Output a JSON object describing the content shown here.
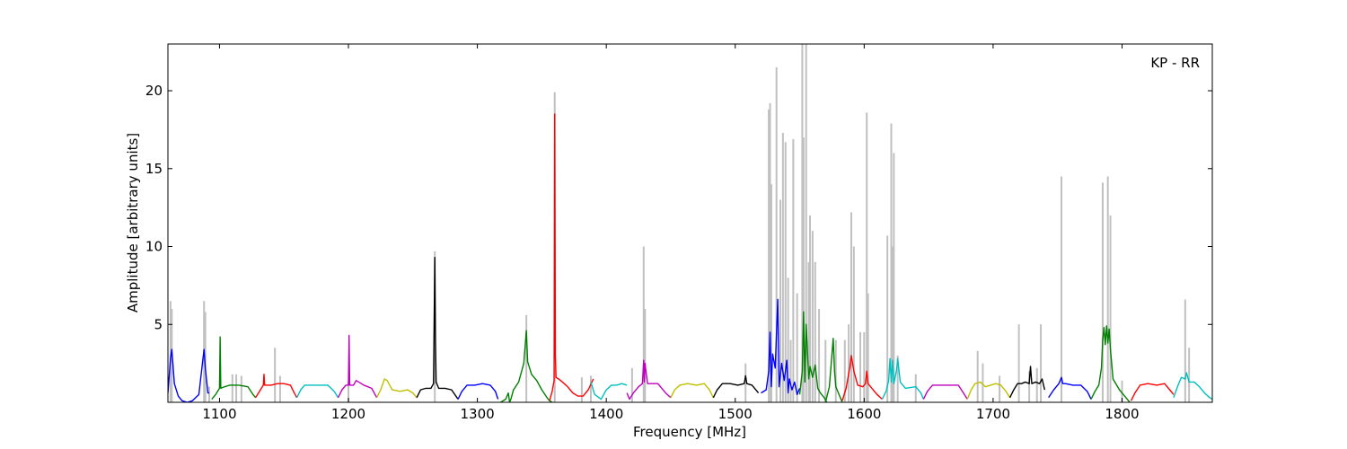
{
  "chart_data": {
    "type": "line",
    "title": "",
    "annotation": "KP - RR",
    "xlabel": "Frequency [MHz]",
    "ylabel": "Amplitude [arbitrary units]",
    "xlim": [
      1060,
      1870
    ],
    "ylim": [
      0,
      23
    ],
    "xticks": [
      1100,
      1200,
      1300,
      1400,
      1500,
      1600,
      1700,
      1800
    ],
    "yticks": [
      5,
      10,
      15,
      20
    ],
    "grid": false,
    "legend": "none",
    "series_colors": [
      "#0000ff",
      "#008000",
      "#ff0000",
      "#00bfbf",
      "#bf00bf",
      "#bfbf00",
      "#000000"
    ],
    "background_color": "#c0c0c0",
    "background_peaks": [
      [
        1062,
        6.5
      ],
      [
        1063,
        6.0
      ],
      [
        1088,
        6.5
      ],
      [
        1089,
        5.8
      ],
      [
        1092,
        1.0
      ],
      [
        1110,
        1.8
      ],
      [
        1113,
        1.8
      ],
      [
        1117,
        1.7
      ],
      [
        1143,
        3.5
      ],
      [
        1147,
        1.7
      ],
      [
        1200,
        1.3
      ],
      [
        1267,
        9.7
      ],
      [
        1338,
        5.6
      ],
      [
        1360,
        19.9
      ],
      [
        1381,
        1.6
      ],
      [
        1388,
        1.7
      ],
      [
        1420,
        2.2
      ],
      [
        1429,
        10.0
      ],
      [
        1430,
        6.0
      ],
      [
        1508,
        2.5
      ],
      [
        1526,
        18.8
      ],
      [
        1527,
        19.2
      ],
      [
        1528,
        14.0
      ],
      [
        1532,
        21.5
      ],
      [
        1535,
        13.0
      ],
      [
        1537,
        17.3
      ],
      [
        1539,
        16.7
      ],
      [
        1541,
        8.0
      ],
      [
        1543,
        4.0
      ],
      [
        1545,
        16.9
      ],
      [
        1548,
        7.0
      ],
      [
        1552,
        23.0
      ],
      [
        1553,
        17.0
      ],
      [
        1555,
        23.0
      ],
      [
        1557,
        9.0
      ],
      [
        1558,
        12.0
      ],
      [
        1560,
        11.0
      ],
      [
        1562,
        9.0
      ],
      [
        1565,
        6.0
      ],
      [
        1570,
        4.0
      ],
      [
        1578,
        4.0
      ],
      [
        1585,
        4.0
      ],
      [
        1588,
        5.0
      ],
      [
        1590,
        12.2
      ],
      [
        1592,
        10.0
      ],
      [
        1597,
        4.5
      ],
      [
        1600,
        4.5
      ],
      [
        1602,
        18.6
      ],
      [
        1603,
        7.0
      ],
      [
        1618,
        10.7
      ],
      [
        1621,
        17.9
      ],
      [
        1622,
        10.0
      ],
      [
        1623,
        16.0
      ],
      [
        1626,
        3.0
      ],
      [
        1640,
        1.8
      ],
      [
        1688,
        3.3
      ],
      [
        1692,
        2.5
      ],
      [
        1705,
        1.7
      ],
      [
        1720,
        5.0
      ],
      [
        1728,
        2.0
      ],
      [
        1734,
        2.2
      ],
      [
        1737,
        5.0
      ],
      [
        1753,
        14.5
      ],
      [
        1785,
        14.1
      ],
      [
        1789,
        14.5
      ],
      [
        1791,
        12.0
      ],
      [
        1800,
        1.4
      ],
      [
        1849,
        6.6
      ],
      [
        1852,
        3.5
      ]
    ],
    "series": [
      {
        "color": "#0000ff",
        "x": [
          1060,
          1062,
          1063,
          1065,
          1068,
          1071,
          1075,
          1079,
          1084,
          1088,
          1089,
          1091,
          1092
        ],
        "y": [
          0.6,
          2.8,
          3.4,
          1.2,
          0.4,
          0.1,
          0.0,
          0.1,
          0.5,
          3.4,
          2.2,
          0.6,
          0.6
        ]
      },
      {
        "color": "#008000",
        "x": [
          1094,
          1097,
          1100,
          1100.5,
          1101,
          1104,
          1108,
          1115,
          1122,
          1126,
          1128
        ],
        "y": [
          0.2,
          0.5,
          0.9,
          4.2,
          0.9,
          1.0,
          1.1,
          1.1,
          1.0,
          0.5,
          0.3
        ]
      },
      {
        "color": "#ff0000",
        "x": [
          1128,
          1131,
          1134,
          1134.5,
          1135,
          1140,
          1145,
          1150,
          1155,
          1158,
          1160
        ],
        "y": [
          0.3,
          0.7,
          1.1,
          1.8,
          1.1,
          1.1,
          1.2,
          1.2,
          1.1,
          0.6,
          0.3
        ]
      },
      {
        "color": "#00bfbf",
        "x": [
          1160,
          1163,
          1166,
          1172,
          1178,
          1184,
          1189,
          1192
        ],
        "y": [
          0.3,
          0.8,
          1.1,
          1.1,
          1.1,
          1.1,
          0.7,
          0.3
        ]
      },
      {
        "color": "#bf00bf",
        "x": [
          1192,
          1195,
          1198,
          1200,
          1200.5,
          1201,
          1204,
          1206,
          1212,
          1218,
          1222
        ],
        "y": [
          0.3,
          0.8,
          1.1,
          1.1,
          4.3,
          1.1,
          1.1,
          1.4,
          1.1,
          0.9,
          0.3
        ]
      },
      {
        "color": "#bfbf00",
        "x": [
          1222,
          1225,
          1228,
          1230,
          1234,
          1240,
          1246,
          1250,
          1253
        ],
        "y": [
          0.3,
          0.8,
          1.5,
          1.4,
          0.8,
          0.7,
          0.8,
          0.6,
          0.3
        ]
      },
      {
        "color": "#000000",
        "x": [
          1253,
          1256,
          1260,
          1264,
          1266,
          1267,
          1267.5,
          1268,
          1270,
          1275,
          1280,
          1285
        ],
        "y": [
          0.3,
          0.8,
          0.9,
          0.9,
          1.2,
          9.3,
          4.0,
          1.3,
          0.9,
          0.9,
          0.8,
          0.2
        ]
      },
      {
        "color": "#0000ff",
        "x": [
          1285,
          1288,
          1292,
          1298,
          1304,
          1310,
          1314,
          1316
        ],
        "y": [
          0.2,
          0.7,
          1.1,
          1.1,
          1.2,
          1.1,
          0.7,
          0.2
        ]
      },
      {
        "color": "#008000",
        "x": [
          1318,
          1322,
          1324,
          1325,
          1326,
          1328,
          1332,
          1336,
          1338,
          1339,
          1342,
          1346,
          1350,
          1354,
          1356,
          1358
        ],
        "y": [
          0.0,
          0.2,
          0.6,
          0.0,
          0.2,
          0.8,
          1.3,
          2.5,
          4.6,
          2.6,
          1.8,
          1.4,
          0.8,
          0.3,
          0.1,
          0.0
        ]
      },
      {
        "color": "#ff0000",
        "x": [
          1356,
          1358,
          1359.5,
          1360,
          1360.5,
          1361,
          1363,
          1366,
          1370,
          1374,
          1378,
          1382,
          1386,
          1390
        ],
        "y": [
          0.1,
          0.7,
          1.4,
          18.5,
          3.0,
          1.6,
          1.5,
          1.3,
          1.0,
          0.6,
          0.4,
          0.4,
          0.8,
          1.5
        ]
      },
      {
        "color": "#00bfbf",
        "x": [
          1388,
          1391,
          1396,
          1400,
          1404,
          1408,
          1412,
          1416
        ],
        "y": [
          1.3,
          0.5,
          0.2,
          0.8,
          1.1,
          1.1,
          1.2,
          1.1
        ]
      },
      {
        "color": "#bf00bf",
        "x": [
          1416,
          1418,
          1421,
          1425,
          1428,
          1429,
          1429.5,
          1430,
          1432,
          1436,
          1440,
          1446,
          1450
        ],
        "y": [
          0.6,
          0.2,
          0.6,
          1.0,
          1.2,
          2.7,
          1.3,
          2.5,
          1.2,
          1.2,
          1.2,
          0.6,
          0.3
        ]
      },
      {
        "color": "#bfbf00",
        "x": [
          1450,
          1453,
          1457,
          1463,
          1470,
          1476,
          1480,
          1483
        ],
        "y": [
          0.3,
          0.8,
          1.1,
          1.2,
          1.1,
          1.2,
          0.8,
          0.3
        ]
      },
      {
        "color": "#000000",
        "x": [
          1483,
          1486,
          1490,
          1496,
          1502,
          1507,
          1508,
          1509,
          1513,
          1518
        ],
        "y": [
          0.3,
          0.8,
          1.2,
          1.2,
          1.1,
          1.2,
          1.7,
          1.2,
          1.1,
          0.6
        ]
      },
      {
        "color": "#0000ff",
        "x": [
          1520,
          1524,
          1526,
          1527,
          1528,
          1529,
          1531,
          1533,
          1534,
          1536,
          1538,
          1540,
          1541,
          1542,
          1544,
          1546,
          1548,
          1550
        ],
        "y": [
          0.6,
          0.8,
          2.0,
          4.5,
          1.0,
          3.1,
          2.2,
          6.6,
          1.0,
          2.5,
          1.4,
          2.7,
          0.6,
          1.5,
          0.8,
          1.3,
          0.5,
          0.9
        ]
      },
      {
        "color": "#008000",
        "x": [
          1550,
          1552,
          1553,
          1554,
          1555,
          1557,
          1558,
          1560,
          1562,
          1564,
          1566,
          1569,
          1571
        ],
        "y": [
          0.5,
          2.0,
          5.8,
          1.3,
          5.0,
          1.5,
          2.3,
          1.6,
          2.4,
          0.9,
          0.6,
          0.3,
          0.0
        ]
      },
      {
        "color": "#008000",
        "x": [
          1570,
          1573,
          1576,
          1577,
          1578,
          1580,
          1583
        ],
        "y": [
          0.0,
          1.0,
          4.1,
          2.0,
          1.0,
          0.6,
          0.0
        ]
      },
      {
        "color": "#ff0000",
        "x": [
          1583,
          1586,
          1589,
          1590,
          1592,
          1595,
          1599,
          1601,
          1602,
          1603,
          1606,
          1610,
          1614
        ],
        "y": [
          0.1,
          0.9,
          2.3,
          3.0,
          2.0,
          1.1,
          1.0,
          1.2,
          2.0,
          1.2,
          0.9,
          0.5,
          0.2
        ]
      },
      {
        "color": "#00bfbf",
        "x": [
          1614,
          1617,
          1619,
          1620,
          1621,
          1622,
          1623,
          1625,
          1626,
          1628,
          1632,
          1640,
          1644,
          1646
        ],
        "y": [
          0.2,
          0.7,
          1.4,
          2.8,
          1.3,
          2.7,
          1.2,
          2.0,
          2.8,
          1.3,
          0.9,
          1.0,
          0.6,
          0.2
        ]
      },
      {
        "color": "#bf00bf",
        "x": [
          1646,
          1649,
          1653,
          1660,
          1667,
          1673,
          1677,
          1680
        ],
        "y": [
          0.2,
          0.7,
          1.1,
          1.1,
          1.1,
          1.1,
          0.6,
          0.2
        ]
      },
      {
        "color": "#bfbf00",
        "x": [
          1680,
          1683,
          1686,
          1690,
          1694,
          1698,
          1702,
          1706,
          1710,
          1713
        ],
        "y": [
          0.2,
          0.8,
          1.2,
          1.3,
          1.0,
          1.1,
          1.2,
          1.1,
          0.7,
          0.3
        ]
      },
      {
        "color": "#000000",
        "x": [
          1713,
          1716,
          1719,
          1722,
          1725,
          1728,
          1729,
          1730,
          1733,
          1736,
          1738,
          1740
        ],
        "y": [
          0.3,
          0.8,
          1.2,
          1.2,
          1.3,
          1.2,
          2.3,
          1.2,
          1.3,
          1.2,
          1.5,
          0.8
        ]
      },
      {
        "color": "#0000ff",
        "x": [
          1743,
          1747,
          1751,
          1753,
          1754,
          1756,
          1762,
          1768,
          1773,
          1776
        ],
        "y": [
          0.3,
          0.8,
          1.2,
          1.6,
          1.2,
          1.2,
          1.1,
          1.1,
          0.7,
          0.2
        ]
      },
      {
        "color": "#008000",
        "x": [
          1776,
          1779,
          1782,
          1784,
          1785,
          1786,
          1787,
          1788,
          1789,
          1790,
          1791,
          1793,
          1798,
          1802,
          1806
        ],
        "y": [
          0.2,
          0.7,
          1.1,
          2.2,
          4.0,
          4.8,
          3.7,
          4.9,
          3.8,
          4.7,
          3.4,
          1.5,
          0.8,
          0.4,
          0.0
        ]
      },
      {
        "color": "#ff0000",
        "x": [
          1807,
          1810,
          1814,
          1820,
          1827,
          1833,
          1837,
          1840
        ],
        "y": [
          0.1,
          0.6,
          1.1,
          1.2,
          1.1,
          1.2,
          0.8,
          0.5
        ]
      },
      {
        "color": "#00bfbf",
        "x": [
          1840,
          1843,
          1846,
          1849,
          1850,
          1852,
          1856,
          1860,
          1864,
          1868,
          1870
        ],
        "y": [
          0.3,
          1.0,
          1.6,
          1.5,
          1.9,
          1.3,
          1.3,
          1.0,
          0.6,
          0.3,
          0.2
        ]
      }
    ]
  }
}
